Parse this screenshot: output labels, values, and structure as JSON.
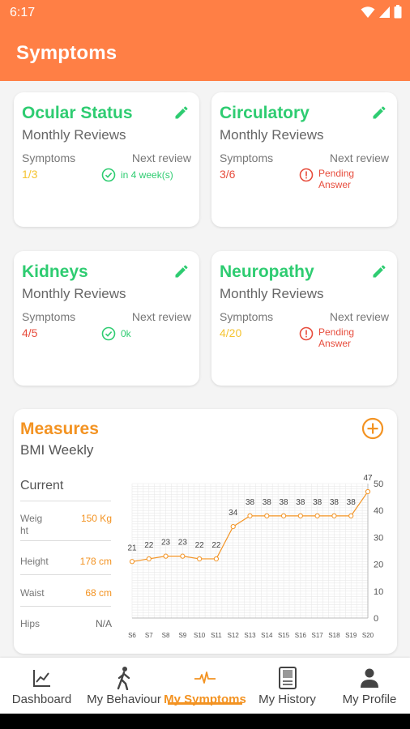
{
  "status_bar": {
    "time": "6:17"
  },
  "app": {
    "title": "Symptoms"
  },
  "colors": {
    "accent": "#ff7f45",
    "good": "#2ecc71",
    "warn": "#f5c431",
    "bad": "#e74c3c",
    "measure": "#f39322"
  },
  "symptom_cards": [
    {
      "title": "Ocular Status",
      "subtitle": "Monthly Reviews",
      "symptoms_label": "Symptoms",
      "next_label": "Next review",
      "count": "1/3",
      "status_lines": [
        "in 4 week(s)"
      ],
      "status_icon": "check-circle-icon"
    },
    {
      "title": "Circulatory",
      "subtitle": "Monthly Reviews",
      "symptoms_label": "Symptoms",
      "next_label": "Next review",
      "count": "3/6",
      "status_lines": [
        "Pending",
        "Answer"
      ],
      "status_icon": "alert-circle-icon"
    },
    {
      "title": "Kidneys",
      "subtitle": "Monthly Reviews",
      "symptoms_label": "Symptoms",
      "next_label": "Next review",
      "count": "4/5",
      "status_lines": [
        "0k"
      ],
      "status_icon": "check-circle-icon"
    },
    {
      "title": "Neuropathy",
      "subtitle": "Monthly Reviews",
      "symptoms_label": "Symptoms",
      "next_label": "Next review",
      "count": "4/20",
      "status_lines": [
        "Pending",
        "Answer"
      ],
      "status_icon": "alert-circle-icon"
    }
  ],
  "measures": {
    "title": "Measures",
    "subtitle": "BMI Weekly",
    "current_label": "Current",
    "rows": [
      {
        "label_lines": [
          "Weig",
          "ht"
        ],
        "value": "150 Kg"
      },
      {
        "label_lines": [
          "Height"
        ],
        "value": "178 cm"
      },
      {
        "label_lines": [
          "Waist"
        ],
        "value": "68 cm"
      },
      {
        "label_lines": [
          "Hips"
        ],
        "value": "N/A"
      }
    ]
  },
  "chart_data": {
    "type": "line",
    "x": [
      "S6",
      "S7",
      "S8",
      "S9",
      "S10",
      "S11",
      "S12",
      "S13",
      "S14",
      "S15",
      "S16",
      "S17",
      "S18",
      "S19",
      "S20"
    ],
    "series": [
      {
        "values": [
          21,
          22,
          23,
          23,
          22,
          22,
          34,
          38,
          38,
          38,
          38,
          38,
          38,
          38,
          47
        ]
      }
    ],
    "y_ticks": [
      0,
      10,
      20,
      30,
      40,
      50
    ],
    "ylim": [
      0,
      50
    ],
    "grid": true,
    "y_axis_side": "right",
    "data_labels": true
  },
  "nav": {
    "items": [
      {
        "label": "Dashboard",
        "icon": "chart-line-icon",
        "active": false
      },
      {
        "label": "My Behaviour",
        "icon": "walking-person-icon",
        "active": false
      },
      {
        "label": "My Symptoms",
        "icon": "heartbeat-icon",
        "active": true
      },
      {
        "label": "My History",
        "icon": "book-icon",
        "active": false
      },
      {
        "label": "My Profile",
        "icon": "person-icon",
        "active": false
      }
    ]
  }
}
